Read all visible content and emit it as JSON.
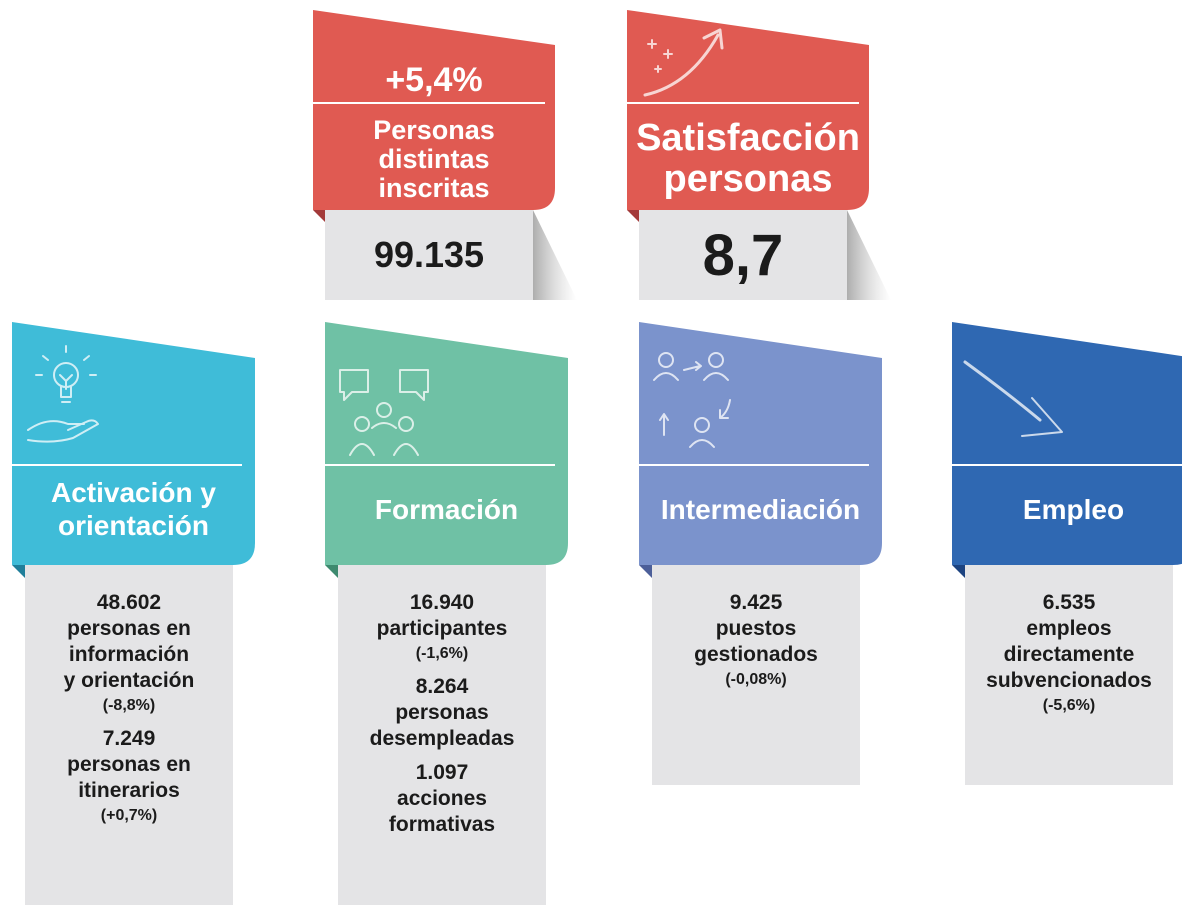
{
  "highlights": [
    {
      "change": "+5,4%",
      "title": [
        "Personas",
        "distintas",
        "inscritas"
      ],
      "value": "99.135"
    },
    {
      "title": [
        "Satisfacción",
        "personas"
      ],
      "value": "8,7"
    }
  ],
  "areas": [
    {
      "title": [
        "Activación y",
        "orientación"
      ],
      "items": [
        {
          "value": "48.602",
          "text": [
            "personas en",
            "información",
            "y orientación"
          ],
          "change": "(-8,8%)"
        },
        {
          "value": "7.249",
          "text": [
            "personas en",
            "itinerarios"
          ],
          "change": "(+0,7%)"
        }
      ]
    },
    {
      "title": [
        "Formación"
      ],
      "items": [
        {
          "value": "16.940",
          "text": [
            "participantes"
          ],
          "change": "(-1,6%)"
        },
        {
          "value": "8.264",
          "text": [
            "personas",
            "desempleadas"
          ]
        },
        {
          "value": "1.097",
          "text": [
            "acciones",
            "formativas"
          ]
        }
      ]
    },
    {
      "title": [
        "Intermediación"
      ],
      "items": [
        {
          "value": "9.425",
          "text": [
            "puestos",
            "gestionados"
          ],
          "change": "(-0,08%)"
        }
      ]
    },
    {
      "title": [
        "Empleo"
      ],
      "items": [
        {
          "value": "6.535",
          "text": [
            "empleos",
            "directamente",
            "subvencionados"
          ],
          "change": "(-5,6%)"
        }
      ]
    }
  ]
}
